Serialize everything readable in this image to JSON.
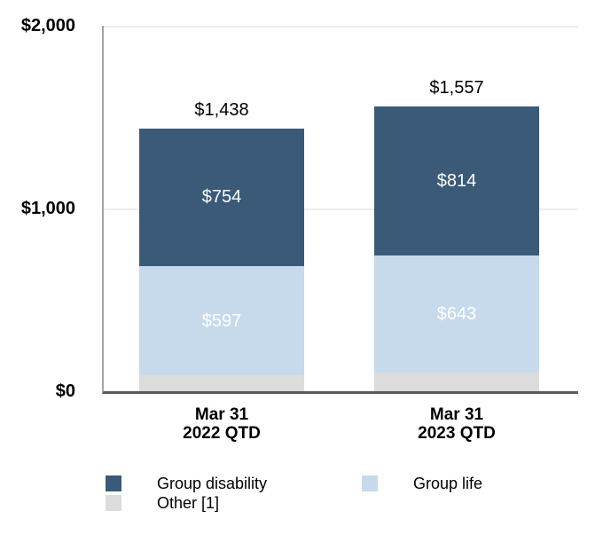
{
  "chart_data": {
    "type": "bar",
    "stacked": true,
    "title": "",
    "categories": [
      {
        "lines": [
          "Mar 31",
          "2022 QTD"
        ],
        "label": "Mar 31 2022 QTD"
      },
      {
        "lines": [
          "Mar 31",
          "2023 QTD"
        ],
        "label": "Mar 31 2023 QTD"
      }
    ],
    "series": [
      {
        "name": "Other [1]",
        "color": "#DCDCDC",
        "values": [
          87,
          100
        ],
        "value_labels": [
          "",
          ""
        ],
        "label_color": "#FFFFFF"
      },
      {
        "name": "Group life",
        "color": "#C6DAEB",
        "values": [
          597,
          643
        ],
        "value_labels": [
          "$597",
          "$643"
        ],
        "label_color": "#FFFFFF"
      },
      {
        "name": "Group disability",
        "color": "#3A5A78",
        "values": [
          754,
          814
        ],
        "value_labels": [
          "$754",
          "$814"
        ],
        "label_color": "#FFFFFF"
      }
    ],
    "totals": [
      1438,
      1557
    ],
    "total_labels": [
      "$1,438",
      "$1,557"
    ],
    "y_axis": {
      "range": [
        0,
        2000
      ],
      "ticks": [
        {
          "value": 0,
          "label": "$0"
        },
        {
          "value": 1000,
          "label": "$1,000"
        },
        {
          "value": 2000,
          "label": "$2,000"
        }
      ],
      "gridlines": [
        1000,
        2000
      ]
    },
    "legend": {
      "position": "bottom",
      "entries": [
        {
          "label": "Group disability",
          "color": "#3A5A78"
        },
        {
          "label": "Group life",
          "color": "#C6DAEB"
        },
        {
          "label": "Other [1]",
          "color": "#DCDCDC"
        }
      ]
    },
    "style": {
      "grid_color": "#EDEDED",
      "y_axis_color": "#A6A6A6",
      "x_axis_color": "#5B5B5B",
      "segment_label_color": "#FFFFFF",
      "text_color": "#000000",
      "background": "#FFFFFF"
    }
  }
}
